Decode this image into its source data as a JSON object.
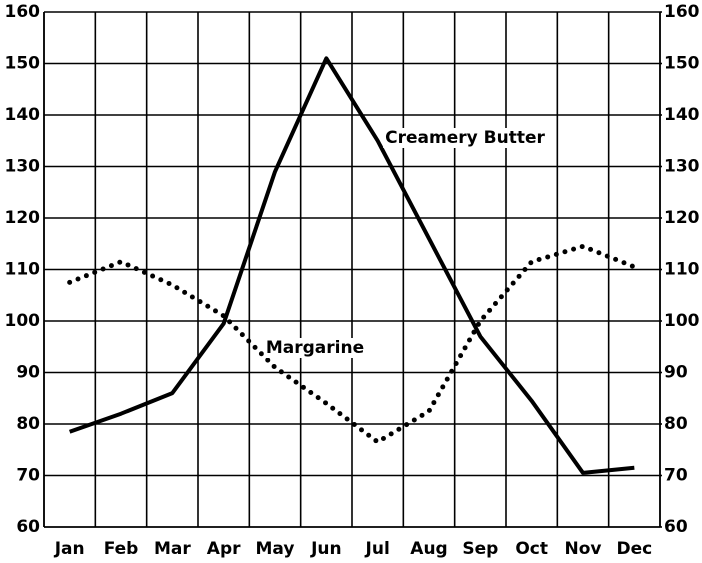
{
  "chart_data": {
    "type": "line",
    "categories": [
      "Jan",
      "Feb",
      "Mar",
      "Apr",
      "May",
      "Jun",
      "Jul",
      "Aug",
      "Sep",
      "Oct",
      "Nov",
      "Dec"
    ],
    "series": [
      {
        "name": "Creamery Butter",
        "color": "#000000",
        "style": "solid",
        "values": [
          78.5,
          82,
          86,
          99.5,
          129,
          151,
          135,
          116,
          97,
          84.5,
          70.5,
          71.5
        ]
      },
      {
        "name": "Margarine",
        "color": "#000000",
        "style": "dotted",
        "values": [
          107.5,
          111.5,
          107,
          101,
          91,
          84,
          76.5,
          82.5,
          100,
          111.5,
          114.5,
          110.5
        ]
      }
    ],
    "ylim": [
      60,
      160
    ],
    "yticks": [
      60,
      70,
      80,
      90,
      100,
      110,
      120,
      130,
      140,
      150,
      160
    ],
    "y2lim": [
      60,
      160
    ],
    "y2ticks": [
      60,
      70,
      80,
      90,
      100,
      110,
      120,
      130,
      140,
      150,
      160
    ],
    "grid": true,
    "reference_line": 100
  }
}
